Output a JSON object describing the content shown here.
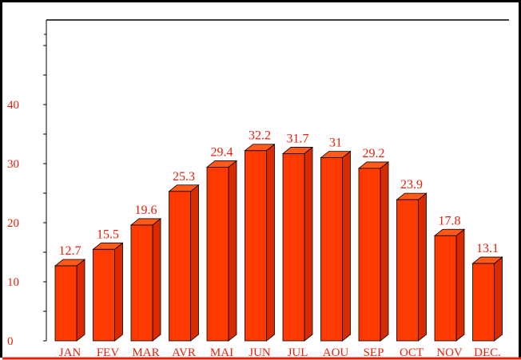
{
  "chart_data": {
    "type": "bar",
    "categories": [
      "JAN",
      "FEV",
      "MAR",
      "AVR",
      "MAI",
      "JUN",
      "JUL",
      "AOU",
      "SEP",
      "OCT",
      "NOV",
      "DEC."
    ],
    "values": [
      12.7,
      15.5,
      19.6,
      25.3,
      29.4,
      32.2,
      31.7,
      31,
      29.2,
      23.9,
      17.8,
      13.1
    ],
    "value_labels": [
      "12.7",
      "15.5",
      "19.6",
      "25.3",
      "29.4",
      "32.2",
      "31.7",
      "31",
      "29.2",
      "23.9",
      "17.8",
      "13.1"
    ],
    "y_ticks": [
      "0",
      "10",
      "20",
      "30",
      "40"
    ],
    "y_tick_values": [
      0,
      10,
      20,
      30,
      40
    ],
    "ylim": [
      0,
      55
    ],
    "title": "",
    "xlabel": "",
    "ylabel": "",
    "grid": false,
    "legend": "none",
    "style": "3d-bar"
  },
  "colors": {
    "bar_front": "#ff3a00",
    "bar_top": "#ff5a1a",
    "bar_side": "#d92a00",
    "label_text": "#e8200a",
    "axis": "#000000",
    "baseline": "#e8200a"
  }
}
